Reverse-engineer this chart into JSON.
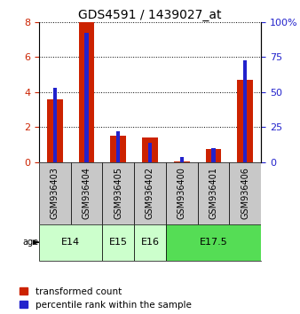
{
  "title": "GDS4591 / 1439027_at",
  "samples": [
    "GSM936403",
    "GSM936404",
    "GSM936405",
    "GSM936402",
    "GSM936400",
    "GSM936401",
    "GSM936406"
  ],
  "transformed_count": [
    3.6,
    8.0,
    1.5,
    1.4,
    0.05,
    0.75,
    4.7
  ],
  "percentile_rank": [
    53,
    92,
    22,
    14,
    4,
    10,
    73
  ],
  "ylim_left": [
    0,
    8
  ],
  "ylim_right": [
    0,
    100
  ],
  "yticks_left": [
    0,
    2,
    4,
    6,
    8
  ],
  "yticks_right": [
    0,
    25,
    50,
    75,
    100
  ],
  "age_groups": [
    {
      "label": "E14",
      "start": 0,
      "end": 1,
      "color": "#ccffcc"
    },
    {
      "label": "E15",
      "start": 2,
      "end": 2,
      "color": "#ccffcc"
    },
    {
      "label": "E16",
      "start": 3,
      "end": 3,
      "color": "#ccffcc"
    },
    {
      "label": "E17.5",
      "start": 4,
      "end": 6,
      "color": "#55dd55"
    }
  ],
  "red_color": "#cc2200",
  "blue_color": "#2222cc",
  "red_bar_width": 0.5,
  "blue_bar_width": 0.12,
  "label_fontsize": 7,
  "title_fontsize": 10,
  "legend_fontsize": 7.5,
  "age_label_fontsize": 8,
  "gray_box_color": "#c8c8c8",
  "light_green": "#ccffcc",
  "dark_green": "#55dd55"
}
